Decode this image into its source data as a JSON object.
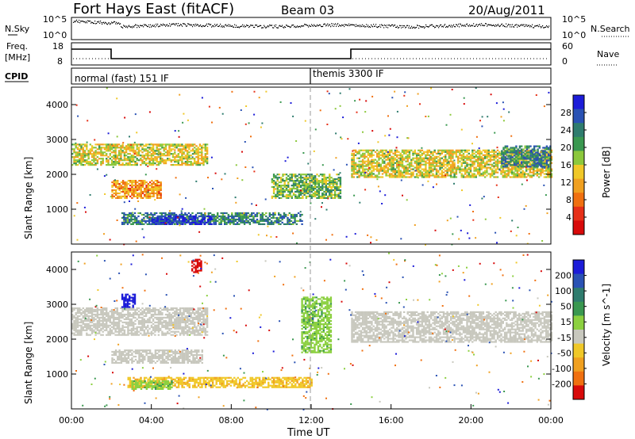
{
  "header": {
    "title": "Fort Hays East (fitACF)",
    "beam": "Beam 03",
    "date": "20/Aug/2011"
  },
  "noise_panel": {
    "left_label": "N.Sky",
    "left_ticks": [
      "10^5",
      "10^0"
    ],
    "right_label": "N.Search",
    "right_ticks": [
      "10^5",
      "10^0"
    ]
  },
  "freq_panel": {
    "left_label_1": "Freq.",
    "left_label_2": "[MHz]",
    "left_ticks": [
      "18",
      "8"
    ],
    "right_label": "Nave",
    "right_ticks": [
      "60",
      "0"
    ]
  },
  "cpid": {
    "label": "CPID",
    "mode_1": "normal (fast) 151 IF",
    "mode_2": "themis 3300 IF"
  },
  "x_axis": {
    "label": "Time UT",
    "ticks": [
      "00:00",
      "04:00",
      "08:00",
      "12:00",
      "16:00",
      "20:00",
      "00:00"
    ]
  },
  "colors": {
    "power_scale": [
      "#1c1cd8",
      "#2a52b4",
      "#2f7c6e",
      "#3a9850",
      "#8cc83c",
      "#f0c828",
      "#f0a020",
      "#f07010",
      "#e63018",
      "#d80a0a"
    ],
    "velocity_scale": [
      "#1c1cd8",
      "#2a52b4",
      "#2f7c6e",
      "#3a9850",
      "#8cd040",
      "#c8c8be",
      "#f0c828",
      "#f0a020",
      "#f07010",
      "#d80a0a"
    ]
  },
  "chart_data": [
    {
      "type": "heatmap",
      "name": "power",
      "ylabel": "Slant Range [km]",
      "yticks": [
        "1000",
        "2000",
        "3000",
        "4000"
      ],
      "ylim": [
        0,
        4500
      ],
      "xlim_hours": [
        0,
        24
      ],
      "colorbar_label": "Power [dB]",
      "colorbar_ticks": [
        "28",
        "24",
        "20",
        "16",
        "12",
        "8",
        "4"
      ],
      "colorbar_range": [
        0,
        30
      ],
      "features": [
        {
          "t": [
            0.0,
            6.8
          ],
          "r": [
            2250,
            2850
          ],
          "value": 14
        },
        {
          "t": [
            2.0,
            4.5
          ],
          "r": [
            1300,
            1800
          ],
          "value": 10
        },
        {
          "t": [
            2.5,
            11.5
          ],
          "r": [
            550,
            900
          ],
          "value": 22
        },
        {
          "t": [
            4.0,
            7.0
          ],
          "r": [
            550,
            800
          ],
          "value": 28
        },
        {
          "t": [
            10.0,
            13.5
          ],
          "r": [
            1300,
            2000
          ],
          "value": 18
        },
        {
          "t": [
            14.0,
            24.0
          ],
          "r": [
            1900,
            2700
          ],
          "value": 14
        },
        {
          "t": [
            21.5,
            24.0
          ],
          "r": [
            2200,
            2800
          ],
          "value": 22
        }
      ]
    },
    {
      "type": "heatmap",
      "name": "velocity",
      "ylabel": "Slant Range [km]",
      "yticks": [
        "1000",
        "2000",
        "3000",
        "4000"
      ],
      "ylim": [
        0,
        4500
      ],
      "xlim_hours": [
        0,
        24
      ],
      "colorbar_label": "Velocity [m s^-1]",
      "colorbar_ticks": [
        "200",
        "100",
        "50",
        "15",
        "-15",
        "-50",
        "-100",
        "-200"
      ],
      "colorbar_range": [
        -250,
        250
      ],
      "features": [
        {
          "t": [
            0.0,
            6.8
          ],
          "r": [
            2100,
            2900
          ],
          "value": 0
        },
        {
          "t": [
            2.0,
            6.5
          ],
          "r": [
            1300,
            1700
          ],
          "value": 0
        },
        {
          "t": [
            2.8,
            12.0
          ],
          "r": [
            600,
            900
          ],
          "value": -40
        },
        {
          "t": [
            3.0,
            5.0
          ],
          "r": [
            550,
            800
          ],
          "value": 40
        },
        {
          "t": [
            6.0,
            6.5
          ],
          "r": [
            3900,
            4300
          ],
          "value": -220
        },
        {
          "t": [
            2.5,
            3.2
          ],
          "r": [
            2900,
            3300
          ],
          "value": 220
        },
        {
          "t": [
            14.0,
            24.0
          ],
          "r": [
            1900,
            2800
          ],
          "value": 0
        },
        {
          "t": [
            11.5,
            13.0
          ],
          "r": [
            1600,
            3200
          ],
          "value": 40
        }
      ]
    }
  ]
}
